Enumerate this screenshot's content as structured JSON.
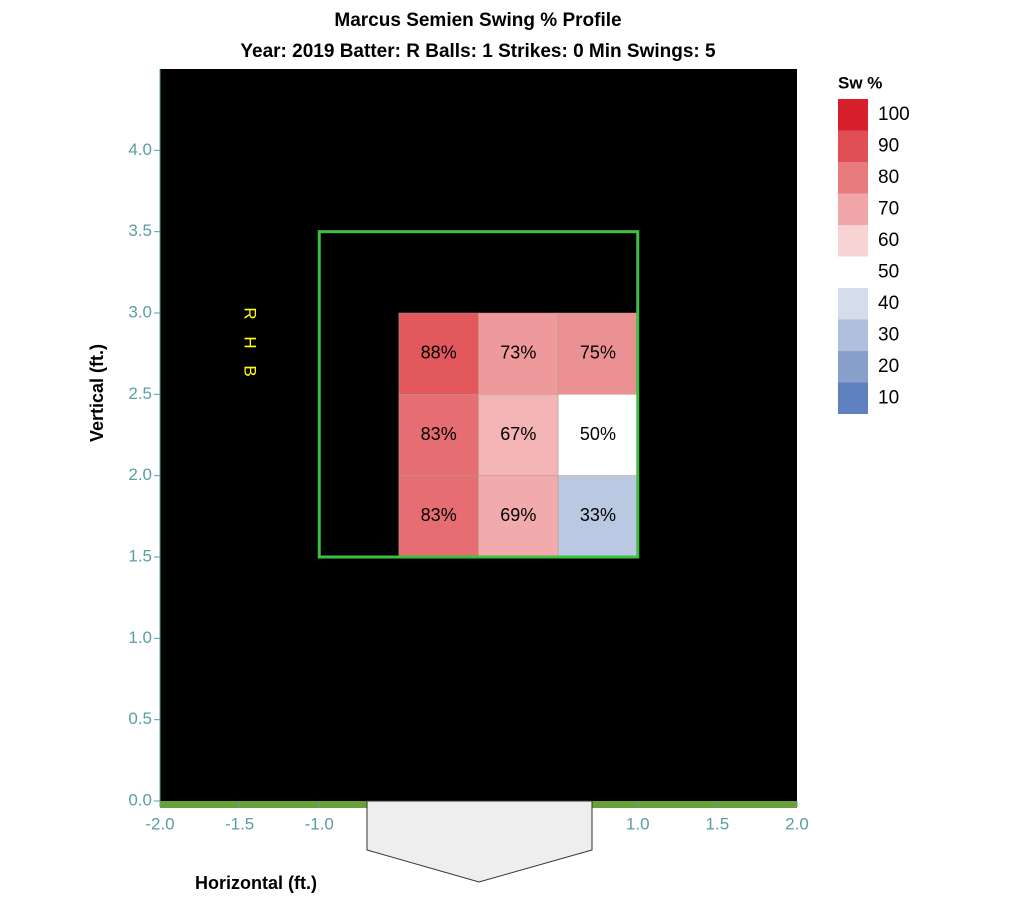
{
  "chart_data": {
    "type": "heatmap",
    "title": "Marcus Semien Swing % Profile",
    "subtitle": "Year: 2019 Batter: R Balls: 1 Strikes: 0 Min Swings: 5",
    "x_label": "Horizontal (ft.)",
    "y_label": "Vertical (ft.)",
    "annotation": "R H B",
    "xlim": [
      -2,
      2
    ],
    "ylim": [
      0,
      4.5
    ],
    "xticks": [
      {
        "value": -2,
        "label": "-2.0"
      },
      {
        "value": -1.5,
        "label": "-1.5"
      },
      {
        "value": -1,
        "label": "-1.0"
      },
      {
        "value": 1,
        "label": "1.0"
      },
      {
        "value": 1.5,
        "label": "1.5"
      },
      {
        "value": 2,
        "label": "2.0"
      }
    ],
    "yticks": [
      {
        "value": 0,
        "label": "0.0"
      },
      {
        "value": 0.5,
        "label": "0.5"
      },
      {
        "value": 1,
        "label": "1.0"
      },
      {
        "value": 1.5,
        "label": "1.5"
      },
      {
        "value": 2,
        "label": "2.0"
      },
      {
        "value": 2.5,
        "label": "2.5"
      },
      {
        "value": 3,
        "label": "3.0"
      },
      {
        "value": 3.5,
        "label": "3.5"
      },
      {
        "value": 4,
        "label": "4.0"
      }
    ],
    "x_bins": [
      -0.5,
      0,
      0.5,
      1
    ],
    "y_bins": [
      3,
      2.5,
      2,
      1.5
    ],
    "z": [
      [
        88,
        73,
        75
      ],
      [
        83,
        67,
        50
      ],
      [
        83,
        69,
        33
      ]
    ],
    "value_labels": [
      [
        "88%",
        "73%",
        "75%"
      ],
      [
        "83%",
        "67%",
        "50%"
      ],
      [
        "83%",
        "69%",
        "33%"
      ]
    ],
    "strike_zone": {
      "x": [
        -1,
        1
      ],
      "y": [
        1.5,
        3.5
      ],
      "color": "#3fbf3f"
    },
    "legend": {
      "title": "Sw %",
      "levels": [
        100,
        90,
        80,
        70,
        60,
        50,
        40,
        30,
        20,
        10
      ],
      "colors": [
        "#d7202b",
        "#e04f55",
        "#e87b7e",
        "#f0a6a8",
        "#f8d3d4",
        "#ffffff",
        "#d5ddec",
        "#afbfdc",
        "#89a0cc",
        "#5f81bf"
      ]
    }
  }
}
